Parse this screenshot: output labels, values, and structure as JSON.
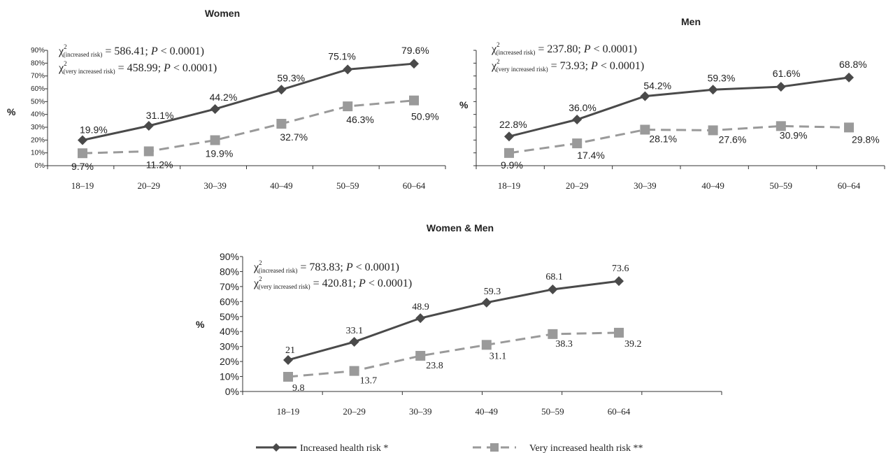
{
  "colors": {
    "increased": "#4a4a4a",
    "very_increased": "#9a9a9a",
    "axis": "#333333"
  },
  "legend": {
    "position": "bottom",
    "increased_label": "Increased health risk *",
    "very_increased_label": "Very increased health risk **"
  },
  "chart_data": [
    {
      "type": "line",
      "title": "Women",
      "ylabel": "%",
      "ylim": [
        0,
        90
      ],
      "yticks": [
        "0%",
        "10%",
        "20%",
        "30%",
        "40%",
        "50%",
        "60%",
        "70%",
        "80%",
        "90%"
      ],
      "categories": [
        "18–19",
        "20–29",
        "30–39",
        "40–49",
        "50–59",
        "60–64"
      ],
      "grid": false,
      "stat_lines": [
        {
          "label": "(increased risk)",
          "text": " = 586.41; ",
          "p": "P",
          "rest": " < 0.0001)"
        },
        {
          "label": "(very increased risk)",
          "text": " = 458.99; ",
          "p": "P",
          "rest": " < 0.0001)"
        }
      ],
      "series": [
        {
          "name": "Increased health risk *",
          "values": [
            19.9,
            31.1,
            44.2,
            59.3,
            75.1,
            79.6
          ],
          "labels": [
            "19.9%",
            "31.1%",
            "44.2%",
            "59.3%",
            "75.1%",
            "79.6%"
          ]
        },
        {
          "name": "Very increased health risk **",
          "values": [
            9.7,
            11.2,
            19.9,
            32.7,
            46.3,
            50.9
          ],
          "labels": [
            "9.7%",
            "11.2%",
            "19.9%",
            "32.7%",
            "46.3%",
            "50.9%"
          ]
        }
      ]
    },
    {
      "type": "line",
      "title": "Men",
      "ylabel": "%",
      "ylim": [
        0,
        90
      ],
      "categories": [
        "18–19",
        "20–29",
        "30–39",
        "40–49",
        "50–59",
        "60–64"
      ],
      "grid": false,
      "stat_lines": [
        {
          "label": "(increased risk)",
          "text": " = 237.80; ",
          "p": "P",
          "rest": " < 0.0001)"
        },
        {
          "label": "(very increased risk)",
          "text": " = 73.93; ",
          "p": "P",
          "rest": " < 0.0001)"
        }
      ],
      "series": [
        {
          "name": "Increased health risk *",
          "values": [
            22.8,
            36.0,
            54.2,
            59.3,
            61.6,
            68.8
          ],
          "labels": [
            "22.8%",
            "36.0%",
            "54.2%",
            "59.3%",
            "61.6%",
            "68.8%"
          ]
        },
        {
          "name": "Very increased health risk **",
          "values": [
            9.9,
            17.4,
            28.1,
            27.6,
            30.9,
            29.8
          ],
          "labels": [
            "9.9%",
            "17.4%",
            "28.1%",
            "27.6%",
            "30.9%",
            "29.8%"
          ]
        }
      ]
    },
    {
      "type": "line",
      "title": "Women & Men",
      "ylabel": "%",
      "ylim": [
        0,
        90
      ],
      "yticks": [
        "0%",
        "10%",
        "20%",
        "30%",
        "40%",
        "50%",
        "60%",
        "70%",
        "80%",
        "90%"
      ],
      "categories": [
        "18–19",
        "20–29",
        "30–39",
        "40–49",
        "50–59",
        "60–64"
      ],
      "grid": false,
      "stat_lines": [
        {
          "label": "(increased risk)",
          "text": " = 783.83; ",
          "p": "P",
          "rest": " < 0.0001)"
        },
        {
          "label": "(very increased risk)",
          "text": " = 420.81; ",
          "p": "P",
          "rest": " < 0.0001)"
        }
      ],
      "series": [
        {
          "name": "Increased health risk *",
          "values": [
            21,
            33.1,
            48.9,
            59.3,
            68.1,
            73.6
          ],
          "labels": [
            "21",
            "33.1",
            "48.9",
            "59.3",
            "68.1",
            "73.6"
          ]
        },
        {
          "name": "Very increased health risk **",
          "values": [
            9.8,
            13.7,
            23.8,
            31.1,
            38.3,
            39.2
          ],
          "labels": [
            "9.8",
            "13.7",
            "23.8",
            "31.1",
            "38.3",
            "39.2"
          ]
        }
      ]
    }
  ]
}
